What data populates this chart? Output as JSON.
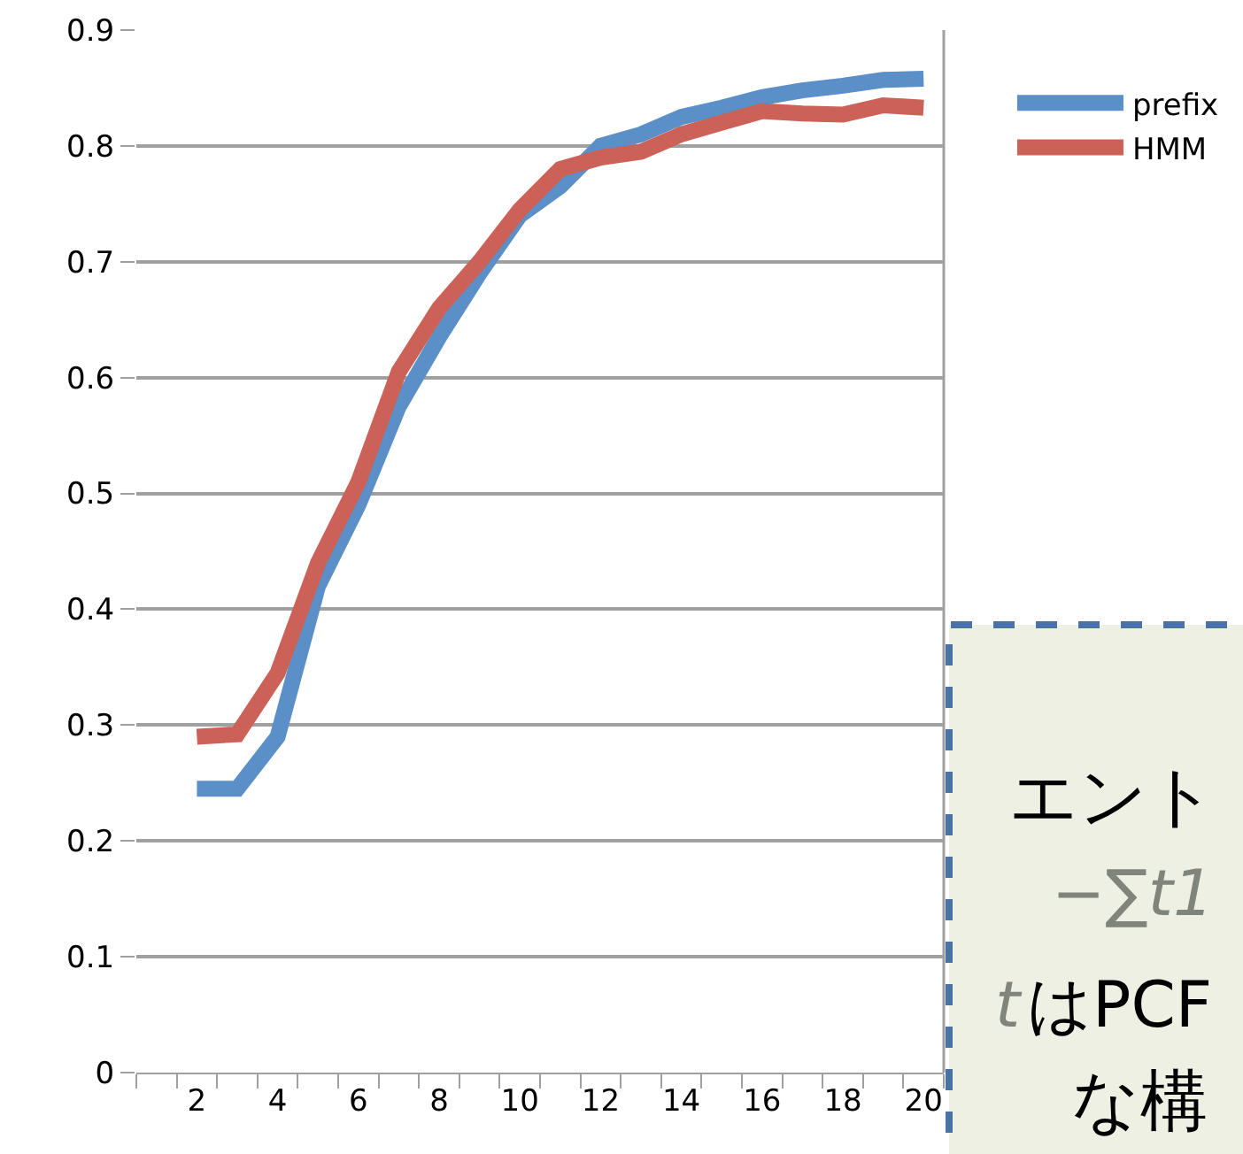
{
  "chart_data": {
    "type": "line",
    "x": [
      2,
      3,
      4,
      5,
      6,
      7,
      8,
      9,
      10,
      11,
      12,
      13,
      14,
      15,
      16,
      17,
      18,
      19,
      20
    ],
    "series": [
      {
        "name": "prefix",
        "color": "#5b8fc7",
        "values": [
          0.245,
          0.245,
          0.29,
          0.42,
          0.49,
          0.575,
          0.635,
          0.69,
          0.74,
          0.765,
          0.8,
          0.81,
          0.825,
          0.833,
          0.842,
          0.848,
          0.852,
          0.857,
          0.858
        ]
      },
      {
        "name": "HMM",
        "color": "#cc6158",
        "values": [
          0.29,
          0.292,
          0.345,
          0.44,
          0.51,
          0.605,
          0.66,
          0.7,
          0.745,
          0.78,
          0.79,
          0.795,
          0.81,
          0.82,
          0.83,
          0.828,
          0.827,
          0.835,
          0.833
        ]
      }
    ],
    "xlim": [
      0.5,
      20.5
    ],
    "xticks": [
      2,
      4,
      6,
      8,
      10,
      12,
      14,
      16,
      18,
      20
    ],
    "ylim": [
      0,
      0.9
    ],
    "yticks": [
      0,
      0.1,
      0.2,
      0.3,
      0.4,
      0.5,
      0.6,
      0.7,
      0.8,
      0.9
    ],
    "grid": "y",
    "legend": "right",
    "marker": "none",
    "line_style": "solid",
    "annotations": [
      "エント",
      "−∑t1",
      "t",
      "はPCF",
      "な構"
    ]
  }
}
